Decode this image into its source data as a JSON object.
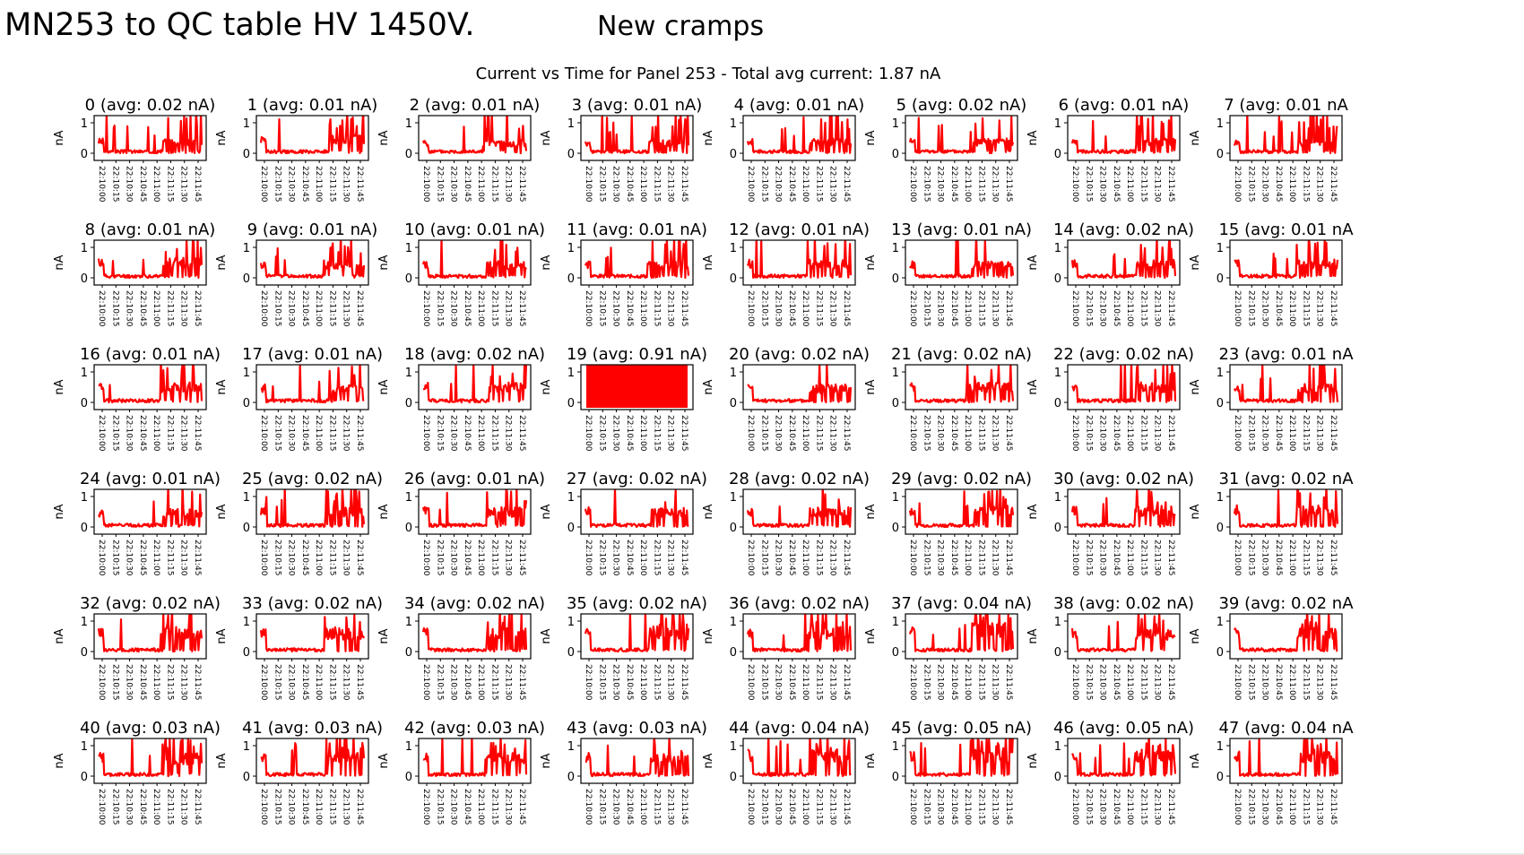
{
  "slide": {
    "title": "MN253 to QC table HV 1450V.",
    "subtitle": "New cramps"
  },
  "chart_data": {
    "type": "line",
    "title": "Current vs Time for Panel 253 - Total avg current: 1.87 nA",
    "ylabel": "nA",
    "ylim": [
      0,
      1
    ],
    "yticks": [
      0,
      1
    ],
    "xticks": [
      "22:10:00",
      "22:10:15",
      "22:10:30",
      "22:10:45",
      "22:11:00",
      "22:11:15",
      "22:11:30",
      "22:11:45"
    ],
    "series_color": "#ff0000",
    "panels": [
      {
        "channel": 0,
        "title": "0 (avg: 0.02 nA)",
        "avg_nA": 0.02,
        "baseline_level": 0.1,
        "step_fraction": 0.62,
        "high_level": 0.45,
        "spikiness": 0.9
      },
      {
        "channel": 1,
        "title": "1 (avg: 0.01 nA)",
        "avg_nA": 0.01,
        "baseline_level": 0.1,
        "step_fraction": 0.66,
        "high_level": 0.55,
        "spikiness": 0.9
      },
      {
        "channel": 2,
        "title": "2 (avg: 0.01 nA)",
        "avg_nA": 0.01,
        "baseline_level": 0.1,
        "step_fraction": 0.58,
        "high_level": 0.4,
        "spikiness": 0.6
      },
      {
        "channel": 3,
        "title": "3 (avg: 0.01 nA)",
        "avg_nA": 0.01,
        "baseline_level": 0.1,
        "step_fraction": 0.62,
        "high_level": 0.4,
        "spikiness": 0.8
      },
      {
        "channel": 4,
        "title": "4 (avg: 0.01 nA)",
        "avg_nA": 0.01,
        "baseline_level": 0.1,
        "step_fraction": 0.6,
        "high_level": 0.45,
        "spikiness": 0.7
      },
      {
        "channel": 5,
        "title": "5 (avg: 0.02 nA)",
        "avg_nA": 0.02,
        "baseline_level": 0.1,
        "step_fraction": 0.6,
        "high_level": 0.45,
        "spikiness": 0.6
      },
      {
        "channel": 6,
        "title": "6 (avg: 0.01 nA)",
        "avg_nA": 0.01,
        "baseline_level": 0.1,
        "step_fraction": 0.62,
        "high_level": 0.45,
        "spikiness": 0.7
      },
      {
        "channel": 7,
        "title": "7 (avg: 0.01 nA",
        "avg_nA": 0.01,
        "baseline_level": 0.1,
        "step_fraction": 0.62,
        "high_level": 0.4,
        "spikiness": 0.8
      },
      {
        "channel": 8,
        "title": "8 (avg: 0.01 nA)",
        "avg_nA": 0.01,
        "baseline_level": 0.1,
        "step_fraction": 0.6,
        "high_level": 0.6,
        "spikiness": 0.9
      },
      {
        "channel": 9,
        "title": "9 (avg: 0.01 nA)",
        "avg_nA": 0.01,
        "baseline_level": 0.1,
        "step_fraction": 0.62,
        "high_level": 0.5,
        "spikiness": 0.5
      },
      {
        "channel": 10,
        "title": "10 (avg: 0.01 nA)",
        "avg_nA": 0.01,
        "baseline_level": 0.1,
        "step_fraction": 0.62,
        "high_level": 0.5,
        "spikiness": 0.5
      },
      {
        "channel": 11,
        "title": "11 (avg: 0.01 nA)",
        "avg_nA": 0.01,
        "baseline_level": 0.1,
        "step_fraction": 0.6,
        "high_level": 0.5,
        "spikiness": 0.9
      },
      {
        "channel": 12,
        "title": "12 (avg: 0.01 nA)",
        "avg_nA": 0.01,
        "baseline_level": 0.1,
        "step_fraction": 0.58,
        "high_level": 0.55,
        "spikiness": 0.4
      },
      {
        "channel": 13,
        "title": "13 (avg: 0.01 nA)",
        "avg_nA": 0.01,
        "baseline_level": 0.1,
        "step_fraction": 0.6,
        "high_level": 0.5,
        "spikiness": 0.4
      },
      {
        "channel": 14,
        "title": "14 (avg: 0.02 nA)",
        "avg_nA": 0.02,
        "baseline_level": 0.1,
        "step_fraction": 0.62,
        "high_level": 0.55,
        "spikiness": 0.5
      },
      {
        "channel": 15,
        "title": "15 (avg: 0.01 nA",
        "avg_nA": 0.01,
        "baseline_level": 0.1,
        "step_fraction": 0.6,
        "high_level": 0.55,
        "spikiness": 0.5
      },
      {
        "channel": 16,
        "title": "16 (avg: 0.01 nA)",
        "avg_nA": 0.01,
        "baseline_level": 0.1,
        "step_fraction": 0.6,
        "high_level": 0.6,
        "spikiness": 0.4
      },
      {
        "channel": 17,
        "title": "17 (avg: 0.01 nA)",
        "avg_nA": 0.01,
        "baseline_level": 0.1,
        "step_fraction": 0.66,
        "high_level": 0.55,
        "spikiness": 0.5
      },
      {
        "channel": 18,
        "title": "18 (avg: 0.02 nA)",
        "avg_nA": 0.02,
        "baseline_level": 0.1,
        "step_fraction": 0.64,
        "high_level": 0.6,
        "spikiness": 0.5
      },
      {
        "channel": 19,
        "title": "19 (avg: 0.91 nA)",
        "avg_nA": 0.91,
        "baseline_level": 1.0,
        "step_fraction": 0.0,
        "high_level": 1.0,
        "spikiness": 0.0,
        "saturated": true
      },
      {
        "channel": 20,
        "title": "20 (avg: 0.02 nA)",
        "avg_nA": 0.02,
        "baseline_level": 0.1,
        "step_fraction": 0.6,
        "high_level": 0.55,
        "spikiness": 0.4
      },
      {
        "channel": 21,
        "title": "21 (avg: 0.02 nA)",
        "avg_nA": 0.02,
        "baseline_level": 0.1,
        "step_fraction": 0.55,
        "high_level": 0.6,
        "spikiness": 0.5
      },
      {
        "channel": 22,
        "title": "22 (avg: 0.02 nA)",
        "avg_nA": 0.02,
        "baseline_level": 0.1,
        "step_fraction": 0.62,
        "high_level": 0.6,
        "spikiness": 0.5
      },
      {
        "channel": 23,
        "title": "23 (avg: 0.01 nA",
        "avg_nA": 0.01,
        "baseline_level": 0.1,
        "step_fraction": 0.62,
        "high_level": 0.55,
        "spikiness": 0.5
      },
      {
        "channel": 24,
        "title": "24 (avg: 0.01 nA)",
        "avg_nA": 0.01,
        "baseline_level": 0.1,
        "step_fraction": 0.62,
        "high_level": 0.55,
        "spikiness": 0.3
      },
      {
        "channel": 25,
        "title": "25 (avg: 0.02 nA)",
        "avg_nA": 0.02,
        "baseline_level": 0.1,
        "step_fraction": 0.62,
        "high_level": 0.6,
        "spikiness": 0.7
      },
      {
        "channel": 26,
        "title": "26 (avg: 0.01 nA)",
        "avg_nA": 0.01,
        "baseline_level": 0.1,
        "step_fraction": 0.62,
        "high_level": 0.6,
        "spikiness": 0.3
      },
      {
        "channel": 27,
        "title": "27 (avg: 0.02 nA)",
        "avg_nA": 0.02,
        "baseline_level": 0.1,
        "step_fraction": 0.64,
        "high_level": 0.6,
        "spikiness": 0.6
      },
      {
        "channel": 28,
        "title": "28 (avg: 0.02 nA)",
        "avg_nA": 0.02,
        "baseline_level": 0.1,
        "step_fraction": 0.6,
        "high_level": 0.6,
        "spikiness": 0.3
      },
      {
        "channel": 29,
        "title": "29 (avg: 0.02 nA)",
        "avg_nA": 0.02,
        "baseline_level": 0.1,
        "step_fraction": 0.62,
        "high_level": 0.65,
        "spikiness": 0.4
      },
      {
        "channel": 30,
        "title": "30 (avg: 0.02 nA)",
        "avg_nA": 0.02,
        "baseline_level": 0.1,
        "step_fraction": 0.6,
        "high_level": 0.65,
        "spikiness": 0.4
      },
      {
        "channel": 31,
        "title": "31 (avg: 0.02 nA",
        "avg_nA": 0.02,
        "baseline_level": 0.1,
        "step_fraction": 0.6,
        "high_level": 0.65,
        "spikiness": 0.5
      },
      {
        "channel": 32,
        "title": "32 (avg: 0.02 nA)",
        "avg_nA": 0.02,
        "baseline_level": 0.1,
        "step_fraction": 0.6,
        "high_level": 0.7,
        "spikiness": 0.7
      },
      {
        "channel": 33,
        "title": "33 (avg: 0.02 nA)",
        "avg_nA": 0.02,
        "baseline_level": 0.1,
        "step_fraction": 0.62,
        "high_level": 0.7,
        "spikiness": 0.4
      },
      {
        "channel": 34,
        "title": "34 (avg: 0.02 nA)",
        "avg_nA": 0.02,
        "baseline_level": 0.1,
        "step_fraction": 0.62,
        "high_level": 0.7,
        "spikiness": 0.4
      },
      {
        "channel": 35,
        "title": "35 (avg: 0.02 nA)",
        "avg_nA": 0.02,
        "baseline_level": 0.1,
        "step_fraction": 0.62,
        "high_level": 0.7,
        "spikiness": 0.5
      },
      {
        "channel": 36,
        "title": "36 (avg: 0.02 nA)",
        "avg_nA": 0.02,
        "baseline_level": 0.1,
        "step_fraction": 0.58,
        "high_level": 0.75,
        "spikiness": 0.7
      },
      {
        "channel": 37,
        "title": "37 (avg: 0.04 nA)",
        "avg_nA": 0.04,
        "baseline_level": 0.1,
        "step_fraction": 0.6,
        "high_level": 0.85,
        "spikiness": 0.9
      },
      {
        "channel": 38,
        "title": "38 (avg: 0.02 nA)",
        "avg_nA": 0.02,
        "baseline_level": 0.1,
        "step_fraction": 0.62,
        "high_level": 0.7,
        "spikiness": 0.5
      },
      {
        "channel": 39,
        "title": "39 (avg: 0.02 nA",
        "avg_nA": 0.02,
        "baseline_level": 0.1,
        "step_fraction": 0.6,
        "high_level": 0.7,
        "spikiness": 0.5
      },
      {
        "channel": 40,
        "title": "40 (avg: 0.03 nA)",
        "avg_nA": 0.03,
        "baseline_level": 0.1,
        "step_fraction": 0.62,
        "high_level": 0.7,
        "spikiness": 0.5
      },
      {
        "channel": 41,
        "title": "41 (avg: 0.03 nA)",
        "avg_nA": 0.03,
        "baseline_level": 0.1,
        "step_fraction": 0.64,
        "high_level": 0.7,
        "spikiness": 0.7
      },
      {
        "channel": 42,
        "title": "42 (avg: 0.03 nA)",
        "avg_nA": 0.03,
        "baseline_level": 0.1,
        "step_fraction": 0.6,
        "high_level": 0.7,
        "spikiness": 0.5
      },
      {
        "channel": 43,
        "title": "43 (avg: 0.03 nA)",
        "avg_nA": 0.03,
        "baseline_level": 0.1,
        "step_fraction": 0.62,
        "high_level": 0.7,
        "spikiness": 0.5
      },
      {
        "channel": 44,
        "title": "44 (avg: 0.04 nA)",
        "avg_nA": 0.04,
        "baseline_level": 0.1,
        "step_fraction": 0.6,
        "high_level": 0.8,
        "spikiness": 0.9
      },
      {
        "channel": 45,
        "title": "45 (avg: 0.05 nA)",
        "avg_nA": 0.05,
        "baseline_level": 0.1,
        "step_fraction": 0.58,
        "high_level": 0.8,
        "spikiness": 0.7
      },
      {
        "channel": 46,
        "title": "46 (avg: 0.05 nA)",
        "avg_nA": 0.05,
        "baseline_level": 0.1,
        "step_fraction": 0.6,
        "high_level": 0.8,
        "spikiness": 0.7
      },
      {
        "channel": 47,
        "title": "47 (avg: 0.04 nA",
        "avg_nA": 0.04,
        "baseline_level": 0.1,
        "step_fraction": 0.64,
        "high_level": 0.75,
        "spikiness": 0.7
      }
    ]
  }
}
